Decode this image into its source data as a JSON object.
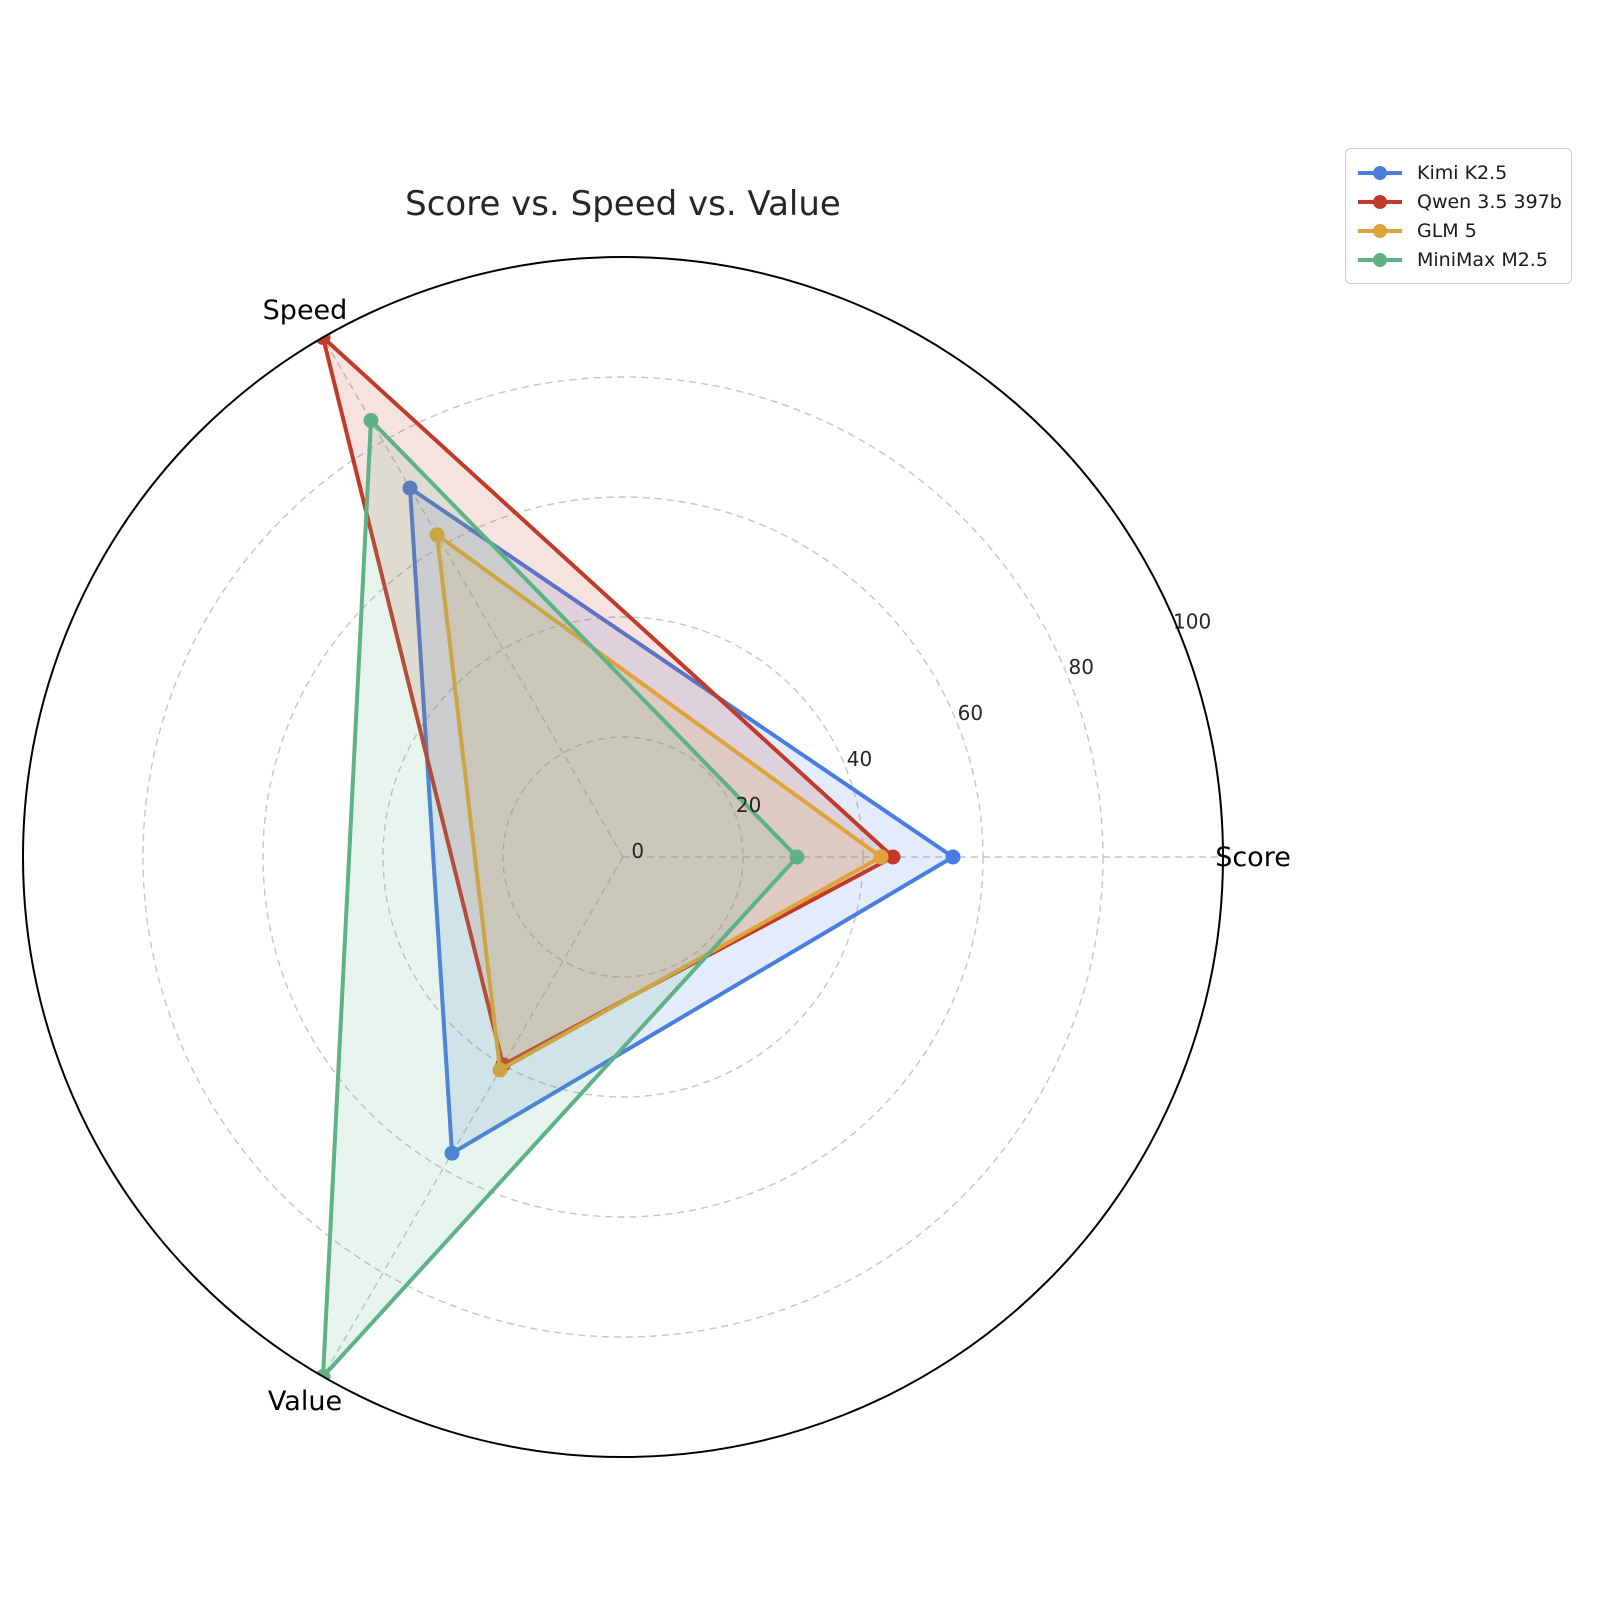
{
  "title": "Score vs. Speed vs. Value",
  "chart_data": {
    "type": "radar",
    "categories": [
      "Score",
      "Speed",
      "Value"
    ],
    "series": [
      {
        "name": "Kimi K2.5",
        "color": "#4A7DE2",
        "values": [
          55,
          71,
          57
        ]
      },
      {
        "name": "Qwen 3.5 397b",
        "color": "#C13B2A",
        "values": [
          45,
          100,
          40
        ]
      },
      {
        "name": "GLM 5",
        "color": "#E0A33A",
        "values": [
          43,
          62,
          41
        ]
      },
      {
        "name": "MiniMax M2.5",
        "color": "#5EB286",
        "values": [
          29,
          84,
          100
        ]
      }
    ],
    "radial_ticks": [
      0,
      20,
      40,
      60,
      80,
      100
    ],
    "rmin": 0,
    "rmax": 100,
    "axis_start_deg": 0,
    "direction": "counterclockwise",
    "tick_label_angle_deg": 22.5,
    "grid": "dashed",
    "grid_color": "#c6c6c6",
    "outer_ring_color": "#000000",
    "fill_alpha": 0.15,
    "legend_position": "upper right"
  }
}
